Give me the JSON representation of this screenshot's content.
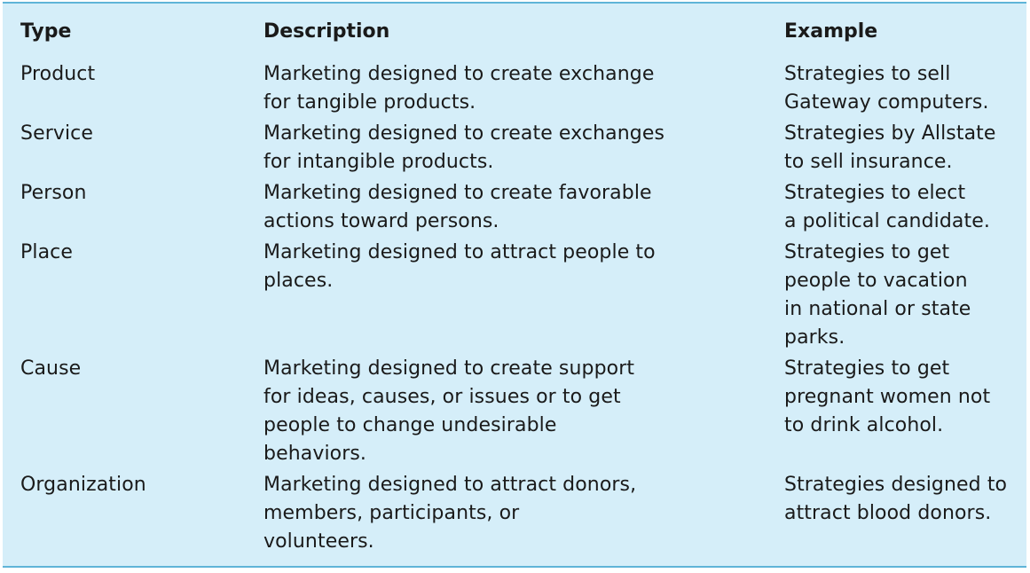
{
  "table": {
    "headers": {
      "type": "Type",
      "description": "Description",
      "example": "Example"
    },
    "rows": [
      {
        "type": "Product",
        "description": "Marketing designed to create exchange\nfor tangible products.",
        "example": "Strategies to sell\nGateway computers."
      },
      {
        "type": "Service",
        "description": "Marketing designed to create exchanges\nfor intangible products.",
        "example": "Strategies by Allstate\nto sell insurance."
      },
      {
        "type": "Person",
        "description": "Marketing designed to create favorable\nactions toward persons.",
        "example": "Strategies to elect\na political candidate."
      },
      {
        "type": "Place",
        "description": "Marketing designed to attract people to\nplaces.",
        "example": "Strategies to get\npeople to vacation\nin national or state\nparks."
      },
      {
        "type": "Cause",
        "description": "Marketing designed to create support\nfor ideas, causes, or issues or to get\npeople to change undesirable\nbehaviors.",
        "example": "Strategies to get\npregnant women not\nto drink alcohol."
      },
      {
        "type": "Organization",
        "description": "Marketing designed to attract donors,\nmembers, participants, or\nvolunteers.",
        "example": "Strategies designed to\nattract blood donors."
      }
    ]
  }
}
